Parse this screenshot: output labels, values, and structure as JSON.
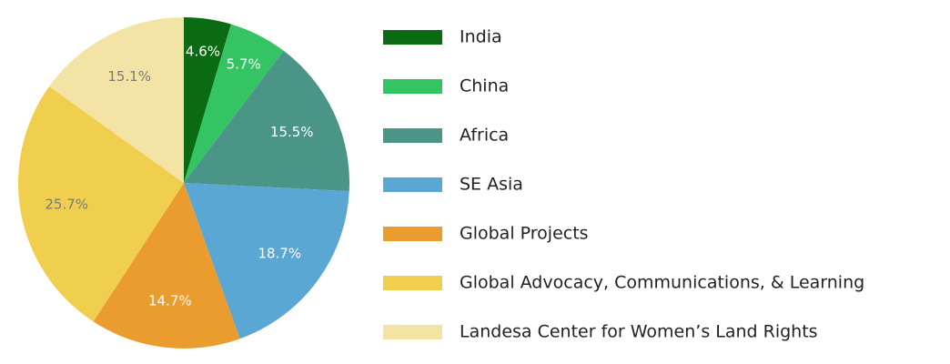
{
  "chart_data": {
    "type": "pie",
    "categories": [
      "India",
      "China",
      "Africa",
      "SE Asia",
      "Global Projects",
      "Global Advocacy, Communications, & Learning",
      "Landesa Center for Women’s Land Rights"
    ],
    "values": [
      4.6,
      5.7,
      15.5,
      18.7,
      14.7,
      25.7,
      15.1
    ],
    "value_labels": [
      "4.6%",
      "5.7%",
      "15.5%",
      "18.7%",
      "14.7%",
      "25.7%",
      "15.1%"
    ],
    "colors": [
      "#0b6b12",
      "#34c463",
      "#4a9488",
      "#5aa7d4",
      "#ea9c2e",
      "#f0cf4e",
      "#f3e4a5"
    ],
    "start_angle": 0,
    "direction": "clockwise",
    "legend": "right"
  }
}
